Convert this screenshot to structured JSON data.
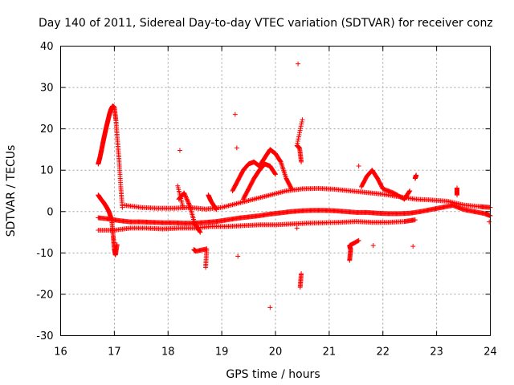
{
  "chart_data": {
    "type": "scatter",
    "title": "Day 140 of 2011, Sidereal Day-to-day VTEC variation (SDTVAR) for receiver conz",
    "xlabel": "GPS time / hours",
    "ylabel": "SDTVAR / TECUs",
    "xlim": [
      16,
      24
    ],
    "ylim": [
      -30,
      40
    ],
    "xticks": [
      16,
      17,
      18,
      19,
      20,
      21,
      22,
      23,
      24
    ],
    "yticks": [
      -30,
      -20,
      -10,
      0,
      10,
      20,
      30,
      40
    ],
    "grid": true,
    "marker": "+",
    "color": "#ff0000",
    "series": [
      {
        "name": "sdtvar",
        "points": [
          [
            16.7,
            11.5
          ],
          [
            16.73,
            13.0
          ],
          [
            16.76,
            14.8
          ],
          [
            16.79,
            16.8
          ],
          [
            16.82,
            18.6
          ],
          [
            16.85,
            20.4
          ],
          [
            16.88,
            22.0
          ],
          [
            16.91,
            23.6
          ],
          [
            16.94,
            24.8
          ],
          [
            16.97,
            25.5
          ],
          [
            17.0,
            25.2
          ],
          [
            17.03,
            22.0
          ],
          [
            17.06,
            17.0
          ],
          [
            17.09,
            12.0
          ],
          [
            17.12,
            6.0
          ],
          [
            17.15,
            1.0
          ],
          [
            16.7,
            4.0
          ],
          [
            16.75,
            3.0
          ],
          [
            16.8,
            2.2
          ],
          [
            16.85,
            1.2
          ],
          [
            16.9,
            0.0
          ],
          [
            16.95,
            -2.0
          ],
          [
            16.98,
            -6.0
          ],
          [
            17.0,
            -9.0
          ],
          [
            17.02,
            -10.5
          ],
          [
            17.05,
            -8.0
          ],
          [
            16.7,
            -1.5
          ],
          [
            16.9,
            -1.8
          ],
          [
            17.1,
            -2.2
          ],
          [
            17.3,
            -2.5
          ],
          [
            17.5,
            -2.5
          ],
          [
            17.7,
            -2.6
          ],
          [
            17.9,
            -2.7
          ],
          [
            18.1,
            -2.7
          ],
          [
            18.3,
            -2.8
          ],
          [
            18.5,
            -2.8
          ],
          [
            18.7,
            -2.6
          ],
          [
            18.9,
            -2.4
          ],
          [
            19.1,
            -2.0
          ],
          [
            19.3,
            -1.6
          ],
          [
            19.5,
            -1.3
          ],
          [
            19.7,
            -1.0
          ],
          [
            19.9,
            -0.6
          ],
          [
            20.1,
            -0.3
          ],
          [
            20.3,
            0.0
          ],
          [
            20.5,
            0.2
          ],
          [
            20.7,
            0.3
          ],
          [
            20.9,
            0.3
          ],
          [
            21.1,
            0.2
          ],
          [
            21.3,
            0.0
          ],
          [
            21.5,
            -0.2
          ],
          [
            21.7,
            -0.2
          ],
          [
            21.9,
            -0.4
          ],
          [
            22.1,
            -0.5
          ],
          [
            22.3,
            -0.5
          ],
          [
            22.5,
            -0.4
          ],
          [
            22.7,
            0.0
          ],
          [
            22.9,
            0.5
          ],
          [
            23.1,
            1.0
          ],
          [
            23.3,
            1.5
          ],
          [
            23.5,
            0.5
          ],
          [
            23.7,
            0.0
          ],
          [
            23.9,
            -0.5
          ],
          [
            24.0,
            -1.0
          ],
          [
            16.7,
            -4.5
          ],
          [
            17.0,
            -4.5
          ],
          [
            17.3,
            -4.0
          ],
          [
            17.6,
            -4.0
          ],
          [
            17.9,
            -4.2
          ],
          [
            18.2,
            -4.0
          ],
          [
            18.5,
            -4.0
          ],
          [
            18.8,
            -3.6
          ],
          [
            19.1,
            -3.6
          ],
          [
            19.4,
            -3.4
          ],
          [
            19.7,
            -3.2
          ],
          [
            20.0,
            -3.2
          ],
          [
            20.3,
            -3.0
          ],
          [
            20.6,
            -2.8
          ],
          [
            20.9,
            -2.7
          ],
          [
            21.2,
            -2.6
          ],
          [
            21.5,
            -2.4
          ],
          [
            21.8,
            -2.6
          ],
          [
            22.1,
            -2.6
          ],
          [
            22.4,
            -2.4
          ],
          [
            22.6,
            -2.0
          ],
          [
            17.2,
            1.5
          ],
          [
            17.5,
            1.0
          ],
          [
            17.8,
            0.8
          ],
          [
            18.1,
            0.8
          ],
          [
            18.4,
            1.0
          ],
          [
            18.7,
            0.6
          ],
          [
            19.0,
            1.0
          ],
          [
            19.3,
            2.0
          ],
          [
            19.6,
            3.0
          ],
          [
            19.9,
            4.0
          ],
          [
            20.2,
            5.0
          ],
          [
            20.5,
            5.5
          ],
          [
            20.8,
            5.6
          ],
          [
            21.1,
            5.4
          ],
          [
            21.4,
            5.0
          ],
          [
            21.7,
            4.6
          ],
          [
            22.0,
            4.2
          ],
          [
            22.3,
            3.6
          ],
          [
            22.6,
            3.0
          ],
          [
            22.9,
            2.8
          ],
          [
            23.2,
            2.5
          ],
          [
            23.5,
            1.6
          ],
          [
            23.8,
            1.2
          ],
          [
            24.0,
            1.0
          ],
          [
            19.2,
            5.0
          ],
          [
            19.3,
            7.5
          ],
          [
            19.4,
            10.0
          ],
          [
            19.5,
            11.5
          ],
          [
            19.6,
            12.0
          ],
          [
            19.7,
            11.0
          ],
          [
            19.8,
            13.0
          ],
          [
            19.9,
            15.0
          ],
          [
            20.0,
            14.0
          ],
          [
            20.1,
            12.0
          ],
          [
            20.2,
            8.0
          ],
          [
            20.3,
            5.5
          ],
          [
            19.4,
            3.0
          ],
          [
            19.5,
            5.5
          ],
          [
            19.6,
            8.0
          ],
          [
            19.7,
            10.0
          ],
          [
            19.8,
            11.5
          ],
          [
            19.9,
            11.0
          ],
          [
            20.0,
            9.0
          ],
          [
            21.6,
            6.0
          ],
          [
            21.7,
            8.5
          ],
          [
            21.8,
            10.0
          ],
          [
            21.9,
            8.0
          ],
          [
            22.0,
            5.5
          ],
          [
            22.2,
            4.5
          ],
          [
            22.4,
            3.0
          ],
          [
            22.5,
            5.0
          ],
          [
            18.2,
            3.0
          ],
          [
            18.3,
            4.5
          ],
          [
            18.4,
            1.5
          ],
          [
            18.5,
            -3.0
          ],
          [
            18.6,
            -5.0
          ],
          [
            18.75,
            4.0
          ],
          [
            18.8,
            2.5
          ],
          [
            18.9,
            0.5
          ],
          [
            18.18,
            6.2
          ],
          [
            18.28,
            1.0
          ],
          [
            18.48,
            -9.2
          ],
          [
            18.52,
            -9.6
          ],
          [
            18.72,
            -9.0
          ],
          [
            18.7,
            -13.5
          ],
          [
            19.3,
            -10.8
          ],
          [
            18.22,
            14.8
          ],
          [
            19.25,
            23.5
          ],
          [
            19.28,
            15.4
          ],
          [
            20.42,
            35.7
          ],
          [
            20.5,
            22.2
          ],
          [
            20.4,
            16.0
          ],
          [
            20.45,
            15.3
          ],
          [
            20.48,
            12.0
          ],
          [
            20.4,
            -4.0
          ],
          [
            20.48,
            -15.0
          ],
          [
            20.46,
            -18.3
          ],
          [
            19.9,
            -23.2
          ],
          [
            21.55,
            11.0
          ],
          [
            21.55,
            -7.0
          ],
          [
            21.38,
            -8.2
          ],
          [
            21.4,
            -9.2
          ],
          [
            21.38,
            -11.8
          ],
          [
            21.82,
            -8.2
          ],
          [
            22.56,
            -8.4
          ],
          [
            22.6,
            8.0
          ],
          [
            22.62,
            8.8
          ],
          [
            23.38,
            5.7
          ],
          [
            23.38,
            4.0
          ],
          [
            23.98,
            -2.5
          ]
        ]
      }
    ]
  }
}
